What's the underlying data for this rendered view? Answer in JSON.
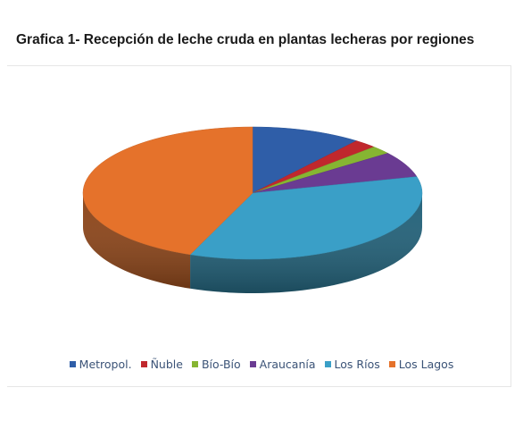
{
  "title": "Grafica 1- Recepción de leche cruda en plantas lecheras por regiones",
  "chart_data": {
    "type": "pie",
    "style": "3d",
    "title": "",
    "series": [
      {
        "categories": [
          "Metropol.",
          "Ñuble",
          "Bío-Bío",
          "Araucanía",
          "Los Ríos",
          "Los Lagos"
        ],
        "values": [
          10.5,
          2.2,
          2.0,
          6.3,
          35.0,
          44.0
        ],
        "colors": [
          "#2f5ea8",
          "#c0282d",
          "#86b532",
          "#6a3b92",
          "#3a9fc7",
          "#e5722b"
        ]
      }
    ],
    "legend_position": "bottom"
  }
}
